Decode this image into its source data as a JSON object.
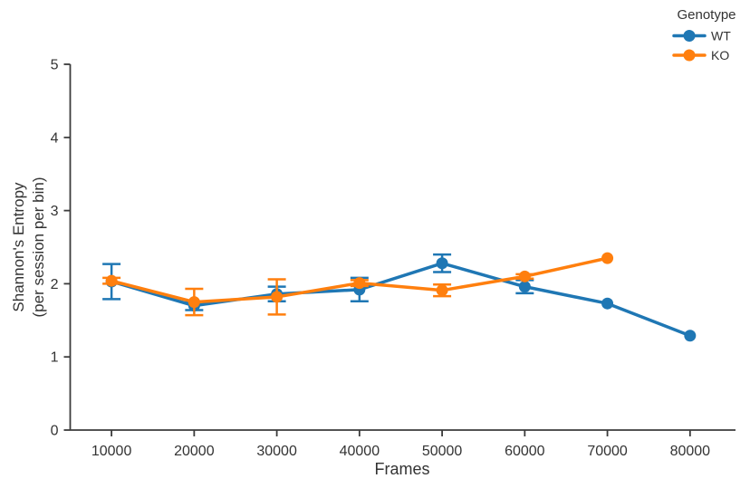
{
  "figure": {
    "background": "#ffffff"
  },
  "labels": {
    "ylabel_line1": "Shannon's Entropy",
    "ylabel_line2": "(per session per bin)"
  },
  "legend": {
    "title": "Genotype",
    "position": "top-right",
    "entries": [
      {
        "label": "WT",
        "color": "#1f77b4"
      },
      {
        "label": "KO",
        "color": "#ff7f0e"
      }
    ]
  },
  "chart_data": {
    "type": "line",
    "title": "",
    "xlabel": "Frames",
    "ylabel": "Shannon's Entropy\n(per session per bin)",
    "x": [
      10000,
      20000,
      30000,
      40000,
      50000,
      60000,
      70000,
      80000
    ],
    "xticks": [
      10000,
      20000,
      30000,
      40000,
      50000,
      60000,
      70000,
      80000
    ],
    "yticks": [
      0,
      1,
      2,
      3,
      4,
      5
    ],
    "xlim": [
      5000,
      85500
    ],
    "ylim": [
      0,
      5
    ],
    "grid": false,
    "error_bars": true,
    "legend_position": "top-right",
    "axis_color": "#3b3b3b",
    "text_color": "#333333",
    "series": [
      {
        "name": "WT",
        "color": "#1f77b4",
        "values": [
          2.03,
          1.7,
          1.86,
          1.92,
          2.28,
          1.96,
          1.73,
          1.29
        ],
        "errors": [
          0.24,
          0.06,
          0.1,
          0.16,
          0.12,
          0.09,
          0,
          0
        ]
      },
      {
        "name": "KO",
        "color": "#ff7f0e",
        "values": [
          2.04,
          1.75,
          1.82,
          2.01,
          1.91,
          2.1,
          2.35,
          null
        ],
        "errors": [
          0.04,
          0.18,
          0.24,
          0.04,
          0.08,
          0.03,
          0,
          null
        ]
      }
    ]
  }
}
